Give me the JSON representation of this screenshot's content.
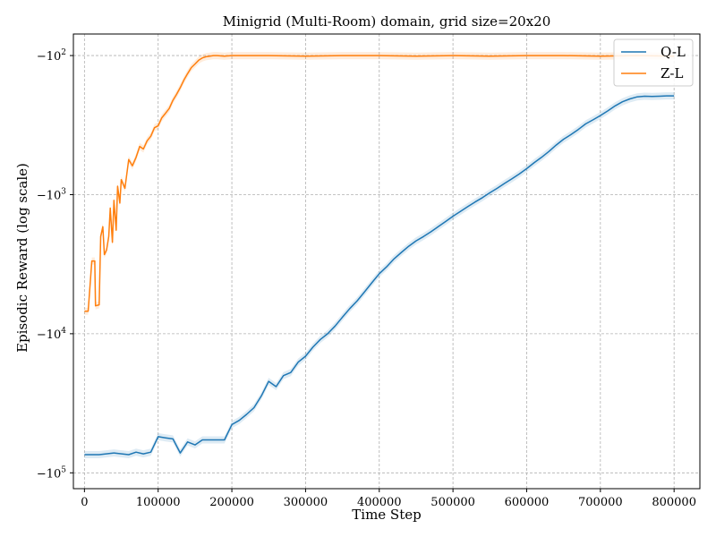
{
  "chart_data": {
    "type": "line",
    "title": "Minigrid (Multi-Room) domain, grid size=20x20",
    "xlabel": "Time Step",
    "ylabel": "Episodic Reward (log scale)",
    "xlim": [
      -15000,
      835000
    ],
    "ylim_magnitude": [
      130000,
      70
    ],
    "y_scale": "symlog-negative",
    "grid": true,
    "legend_position": "top-right",
    "x_ticks": [
      0,
      100000,
      200000,
      300000,
      400000,
      500000,
      600000,
      700000,
      800000
    ],
    "y_ticks": [
      {
        "value": -100,
        "base": "−10",
        "exp": "2"
      },
      {
        "value": -1000,
        "base": "−10",
        "exp": "3"
      },
      {
        "value": -10000,
        "base": "−10",
        "exp": "4"
      },
      {
        "value": -100000,
        "base": "−10",
        "exp": "5"
      }
    ],
    "series": [
      {
        "name": "Q-L",
        "color": "#1f77b4",
        "x": [
          0,
          20000,
          40000,
          60000,
          70000,
          80000,
          90000,
          100000,
          110000,
          120000,
          130000,
          140000,
          150000,
          160000,
          170000,
          190000,
          200000,
          210000,
          220000,
          230000,
          240000,
          250000,
          260000,
          270000,
          280000,
          290000,
          300000,
          310000,
          320000,
          330000,
          340000,
          350000,
          360000,
          370000,
          380000,
          390000,
          400000,
          410000,
          420000,
          430000,
          440000,
          450000,
          460000,
          470000,
          480000,
          490000,
          500000,
          510000,
          520000,
          530000,
          540000,
          550000,
          560000,
          570000,
          580000,
          590000,
          600000,
          610000,
          620000,
          630000,
          640000,
          650000,
          660000,
          670000,
          680000,
          690000,
          700000,
          710000,
          720000,
          730000,
          740000,
          750000,
          760000,
          770000,
          780000,
          790000,
          800000
        ],
        "values": [
          -74000,
          -74000,
          -72000,
          -74000,
          -71000,
          -73000,
          -71000,
          -55000,
          -56000,
          -57000,
          -72000,
          -60000,
          -63000,
          -58000,
          -58000,
          -58000,
          -45000,
          -42000,
          -38000,
          -34000,
          -28000,
          -22000,
          -24000,
          -20000,
          -19000,
          -16000,
          -14500,
          -12500,
          -11000,
          -10000,
          -8800,
          -7600,
          -6600,
          -5800,
          -5000,
          -4300,
          -3700,
          -3300,
          -2900,
          -2600,
          -2350,
          -2150,
          -2000,
          -1850,
          -1700,
          -1560,
          -1430,
          -1320,
          -1220,
          -1130,
          -1050,
          -970,
          -900,
          -830,
          -770,
          -710,
          -650,
          -590,
          -540,
          -490,
          -440,
          -400,
          -370,
          -340,
          -310,
          -290,
          -270,
          -250,
          -230,
          -215,
          -205,
          -198,
          -196,
          -197,
          -196,
          -195,
          -195
        ]
      },
      {
        "name": "Z-L",
        "color": "#ff7f0e",
        "x": [
          0,
          5000,
          10000,
          14000,
          15000,
          20000,
          22000,
          25000,
          27000,
          30000,
          33000,
          35000,
          38000,
          40000,
          43000,
          45000,
          48000,
          50000,
          55000,
          60000,
          65000,
          70000,
          75000,
          80000,
          85000,
          90000,
          95000,
          100000,
          105000,
          110000,
          115000,
          120000,
          125000,
          130000,
          135000,
          140000,
          145000,
          150000,
          155000,
          160000,
          165000,
          170000,
          175000,
          180000,
          190000,
          200000,
          250000,
          300000,
          350000,
          400000,
          450000,
          500000,
          550000,
          600000,
          650000,
          700000,
          750000,
          800000
        ],
        "values": [
          -6900,
          -6900,
          -3000,
          -3000,
          -6300,
          -6200,
          -2000,
          -1700,
          -2700,
          -2500,
          -2000,
          -1250,
          -2200,
          -1100,
          -1800,
          -870,
          -1150,
          -780,
          -900,
          -560,
          -620,
          -540,
          -450,
          -470,
          -410,
          -380,
          -330,
          -320,
          -280,
          -260,
          -240,
          -210,
          -190,
          -170,
          -150,
          -135,
          -122,
          -115,
          -108,
          -104,
          -102,
          -101,
          -100,
          -100,
          -101,
          -100,
          -100,
          -101,
          -100,
          -100,
          -101,
          -100,
          -101,
          -100,
          -100,
          -101,
          -100,
          -101
        ]
      }
    ]
  }
}
